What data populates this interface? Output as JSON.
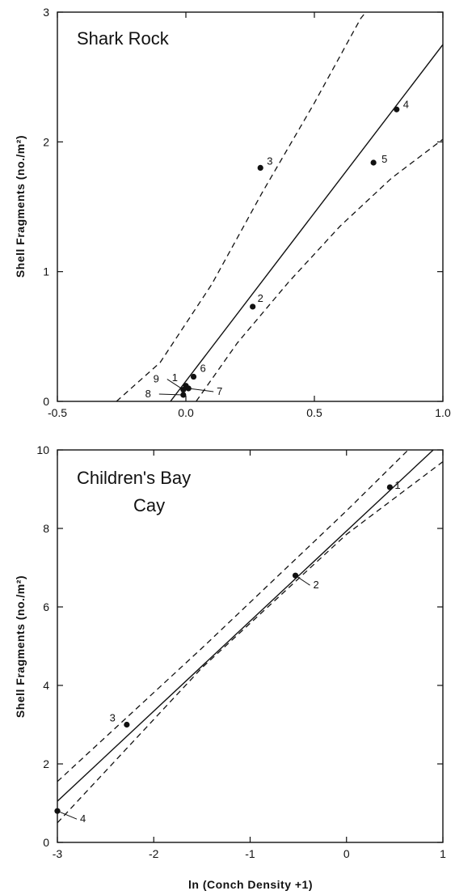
{
  "chart_data": [
    {
      "type": "scatter",
      "title": "Shark Rock",
      "xlabel": "",
      "ylabel": "Shell Fragments (no./m²)",
      "xlim": [
        -0.5,
        1.0
      ],
      "ylim": [
        0,
        3
      ],
      "x_ticks": [
        "-0.5",
        "0.0",
        "0.5",
        "1.0"
      ],
      "y_ticks": [
        "0",
        "1",
        "2",
        "3"
      ],
      "points": [
        {
          "label": "1",
          "x": 0.0,
          "y": 0.12
        },
        {
          "label": "2",
          "x": 0.26,
          "y": 0.73
        },
        {
          "label": "3",
          "x": 0.29,
          "y": 1.8
        },
        {
          "label": "4",
          "x": 0.82,
          "y": 2.25
        },
        {
          "label": "5",
          "x": 0.73,
          "y": 1.84
        },
        {
          "label": "6",
          "x": 0.03,
          "y": 0.19
        },
        {
          "label": "7",
          "x": 0.01,
          "y": 0.1
        },
        {
          "label": "8",
          "x": -0.01,
          "y": 0.05
        },
        {
          "label": "9",
          "x": -0.01,
          "y": 0.09
        }
      ],
      "regression_line": [
        [
          -0.06,
          0
        ],
        [
          1.0,
          2.75
        ]
      ],
      "confidence_upper": [
        [
          -0.27,
          0
        ],
        [
          -0.1,
          0.3
        ],
        [
          0.1,
          0.9
        ],
        [
          0.3,
          1.62
        ],
        [
          0.5,
          2.3
        ],
        [
          0.68,
          2.95
        ],
        [
          0.7,
          3.0
        ]
      ],
      "confidence_lower": [
        [
          0.04,
          0
        ],
        [
          0.2,
          0.45
        ],
        [
          0.4,
          0.92
        ],
        [
          0.6,
          1.35
        ],
        [
          0.8,
          1.72
        ],
        [
          1.0,
          2.02
        ]
      ]
    },
    {
      "type": "scatter",
      "title": "Children's Bay Cay",
      "xlabel": "ln (Conch Density +1)",
      "ylabel": "Shell Fragments (no./m²)",
      "xlim": [
        -3,
        1
      ],
      "ylim": [
        0,
        10
      ],
      "x_ticks": [
        "-3",
        "-2",
        "-1",
        "0",
        "1"
      ],
      "y_ticks": [
        "0",
        "2",
        "4",
        "6",
        "8",
        "10"
      ],
      "points": [
        {
          "label": "1",
          "x": 0.45,
          "y": 9.05
        },
        {
          "label": "2",
          "x": -0.53,
          "y": 6.8
        },
        {
          "label": "3",
          "x": -2.28,
          "y": 3.0
        },
        {
          "label": "4",
          "x": -3.0,
          "y": 0.8
        }
      ],
      "regression_line": [
        [
          -3.0,
          1.05
        ],
        [
          0.9,
          10.0
        ]
      ],
      "confidence_upper": [
        [
          -3.0,
          1.55
        ],
        [
          -1.5,
          4.95
        ],
        [
          0.0,
          8.45
        ],
        [
          0.64,
          10.0
        ]
      ],
      "confidence_lower": [
        [
          -3.0,
          0.5
        ],
        [
          -1.5,
          4.45
        ],
        [
          0.0,
          7.85
        ],
        [
          1.0,
          9.7
        ]
      ]
    }
  ]
}
